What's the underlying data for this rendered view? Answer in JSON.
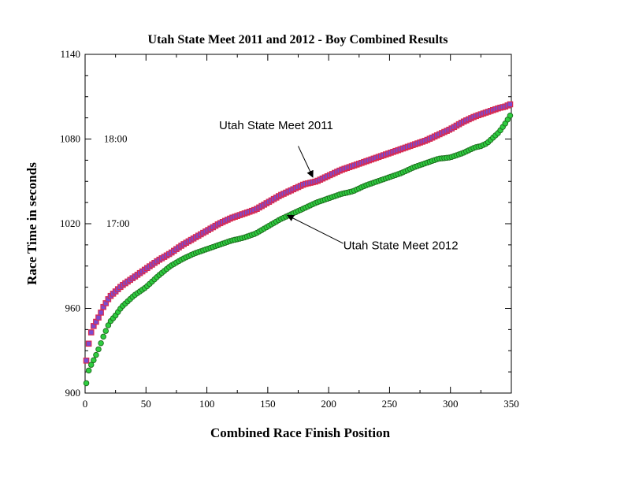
{
  "chart_data": {
    "type": "scatter",
    "title": "Utah State Meet 2011 and 2012 - Boy Combined Results",
    "xlabel": "Combined Race Finish Position",
    "ylabel": "Race Time in seconds",
    "xlim": [
      0,
      350
    ],
    "ylim": [
      900,
      1140
    ],
    "x_ticks": [
      0,
      50,
      100,
      150,
      200,
      250,
      300,
      350
    ],
    "y_ticks": [
      900,
      960,
      1020,
      1080,
      1140
    ],
    "grid": false,
    "legend": "none",
    "reference_labels": [
      {
        "text": "18:00",
        "x": 25,
        "y": 1080
      },
      {
        "text": "17:00",
        "x": 27,
        "y": 1020
      }
    ],
    "annotations": [
      {
        "text": "Utah State Meet 2011",
        "series": "Utah State Meet 2011",
        "label_x": 110,
        "label_y": 1087,
        "arrow_from": [
          175,
          1075
        ],
        "arrow_to": [
          187,
          1053
        ]
      },
      {
        "text": "Utah State Meet 2012",
        "series": "Utah State Meet 2012",
        "label_x": 212,
        "label_y": 1002,
        "arrow_from": [
          212,
          1006
        ],
        "arrow_to": [
          166,
          1026
        ]
      }
    ],
    "series": [
      {
        "name": "Utah State Meet 2011",
        "marker": "square",
        "fill": "#7b4bd0",
        "stroke": "#d92a4f",
        "x": [
          1,
          2,
          3,
          4,
          5,
          6,
          8,
          10,
          12,
          15,
          18,
          20,
          25,
          30,
          40,
          50,
          60,
          70,
          80,
          90,
          100,
          110,
          120,
          130,
          140,
          150,
          160,
          170,
          180,
          190,
          200,
          210,
          220,
          230,
          240,
          250,
          260,
          270,
          280,
          290,
          300,
          310,
          320,
          330,
          340,
          345,
          350
        ],
        "y": [
          923,
          930,
          935,
          940,
          943,
          946,
          949,
          952,
          955,
          961,
          965,
          968,
          972,
          976,
          982,
          988,
          994,
          999,
          1005,
          1010,
          1015,
          1020,
          1024,
          1027,
          1030,
          1035,
          1040,
          1044,
          1048,
          1050,
          1054,
          1058,
          1061,
          1064,
          1067,
          1070,
          1073,
          1076,
          1079,
          1083,
          1087,
          1092,
          1096,
          1099,
          1102,
          1103,
          1105
        ]
      },
      {
        "name": "Utah State Meet 2012",
        "marker": "circle",
        "fill": "#2ecc40",
        "stroke": "#1c6b1c",
        "x": [
          1,
          2,
          3,
          5,
          8,
          10,
          12,
          15,
          18,
          20,
          25,
          30,
          40,
          50,
          60,
          70,
          80,
          90,
          100,
          110,
          120,
          130,
          140,
          150,
          160,
          170,
          180,
          190,
          200,
          210,
          220,
          230,
          240,
          250,
          260,
          270,
          280,
          290,
          300,
          310,
          320,
          325,
          330,
          335,
          340,
          345,
          350
        ],
        "y": [
          907,
          912,
          916,
          920,
          925,
          929,
          933,
          940,
          946,
          950,
          955,
          961,
          969,
          975,
          983,
          990,
          995,
          999,
          1002,
          1005,
          1008,
          1010,
          1013,
          1018,
          1023,
          1027,
          1031,
          1035,
          1038,
          1041,
          1043,
          1047,
          1050,
          1053,
          1056,
          1060,
          1063,
          1066,
          1067,
          1070,
          1074,
          1075,
          1077,
          1081,
          1085,
          1091,
          1098
        ]
      }
    ]
  }
}
